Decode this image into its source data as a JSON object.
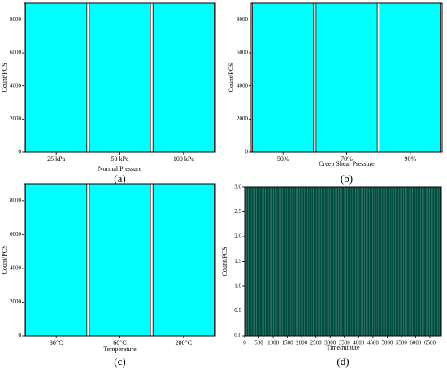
{
  "chart_data": [
    {
      "panel_label": "(a)",
      "type": "bar",
      "categories": [
        "25 kPa",
        "50 kPa",
        "100 kPa"
      ],
      "values": [
        9000,
        9000,
        9000
      ],
      "xlabel": "Normal Pressure",
      "ylabel": "Count/PCS",
      "ylim": [
        0,
        9000
      ],
      "yticks": [
        "0",
        "2000",
        "4000",
        "6000",
        "8000"
      ],
      "bar_color": "#00ffff",
      "grid": false
    },
    {
      "panel_label": "(b)",
      "type": "bar",
      "categories": [
        "50%",
        "70%",
        "90%"
      ],
      "values": [
        9000,
        9000,
        9000
      ],
      "xlabel": "Creep Shear Pressure",
      "ylabel": "Count/PCS",
      "ylim": [
        0,
        9000
      ],
      "yticks": [
        "0",
        "2000",
        "4000",
        "6000",
        "8000"
      ],
      "bar_color": "#00ffff",
      "grid": false
    },
    {
      "panel_label": "(c)",
      "type": "bar",
      "categories": [
        "30°C",
        "60°C",
        "200°C"
      ],
      "values": [
        9000,
        9000,
        9000
      ],
      "xlabel": "Temperature",
      "ylabel": "Count/PCS",
      "ylim": [
        0,
        9000
      ],
      "yticks": [
        "0",
        "2000",
        "4000",
        "6000",
        "8000"
      ],
      "bar_color": "#00ffff",
      "grid": false
    },
    {
      "panel_label": "(d)",
      "type": "bar",
      "xlabel": "Time/minute",
      "ylabel": "Count/PCS",
      "xlim": [
        0,
        6900
      ],
      "ylim": [
        0,
        3.0
      ],
      "bar_value": 3.0,
      "bar_spacing": 60,
      "xticks": [
        "0",
        "500",
        "1000",
        "1500",
        "2000",
        "2500",
        "3000",
        "3500",
        "4000",
        "4500",
        "5000",
        "5500",
        "6000",
        "6500"
      ],
      "yticks": [
        "0.0",
        "0.5",
        "1.0",
        "1.5",
        "2.0",
        "2.5",
        "3.0"
      ],
      "bar_color": "#004d40",
      "grid": false
    }
  ]
}
